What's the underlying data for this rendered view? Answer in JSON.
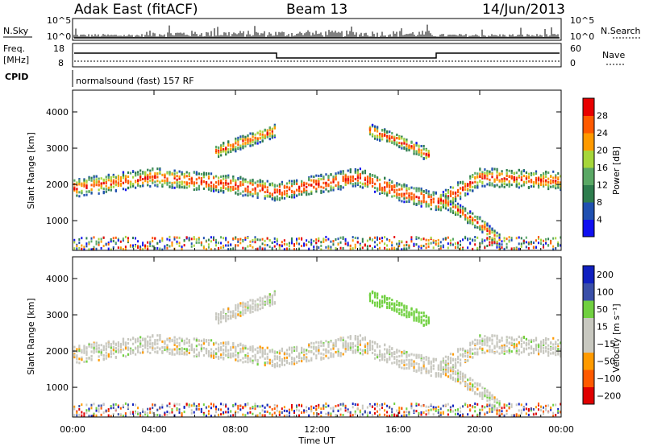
{
  "header": {
    "station": "Adak East (fitACF)",
    "beam": "Beam 13",
    "date": "14/Jun/2013"
  },
  "noise_panel": {
    "left_label": "N.Sky",
    "right_label": "N.Search",
    "left_ticks": [
      "10^5",
      "10^0"
    ],
    "right_ticks": [
      "10^5",
      "10^0"
    ]
  },
  "freq_panel": {
    "left_label_1": "Freq.",
    "left_label_2": "[MHz]",
    "right_label": "Nave",
    "left_ticks": [
      "18",
      "8"
    ],
    "right_ticks": [
      "60",
      "0"
    ],
    "cpid_label": "CPID",
    "cpid_text": "normalsound (fast) 157 RF"
  },
  "colors": {
    "power": [
      "#1010f0",
      "#2050b0",
      "#2e7d4e",
      "#5aa865",
      "#a6d63a",
      "#ff9a00",
      "#ff5a00",
      "#e80000"
    ],
    "velocity": [
      "#e00000",
      "#ff5a00",
      "#ff9a00",
      "#c8c8c0",
      "#c8c8c0",
      "#70d040",
      "#3a4fa8",
      "#1020c0"
    ]
  },
  "chart_data": [
    {
      "type": "heatmap",
      "title": "Power",
      "ylabel": "Slant Range [km]",
      "ylim": [
        180,
        4600
      ],
      "yticks": [
        "1000",
        "2000",
        "3000",
        "4000"
      ],
      "colorbar_label": "Power [dB]",
      "colorbar_ticks": [
        "4",
        "8",
        "12",
        "16",
        "20",
        "24",
        "28"
      ],
      "bands": [
        {
          "t": [
            0,
            4,
            7,
            10,
            12,
            14,
            16,
            18,
            20,
            24
          ],
          "range": [
            1900,
            2200,
            2050,
            1800,
            2000,
            2200,
            1800,
            1500,
            2200,
            2100
          ],
          "note": "main echo band"
        },
        {
          "t": [
            7,
            9,
            10
          ],
          "range": [
            2900,
            3300,
            3500
          ],
          "note": "upper slant"
        },
        {
          "t": [
            14.5,
            16,
            17.5
          ],
          "range": [
            3500,
            3200,
            2800
          ],
          "note": "upper slant"
        },
        {
          "t": [
            18,
            20,
            21
          ],
          "range": [
            1600,
            900,
            400
          ],
          "note": "lower slant"
        }
      ]
    },
    {
      "type": "heatmap",
      "title": "Velocity",
      "ylabel": "Slant Range [km]",
      "ylim": [
        180,
        4600
      ],
      "yticks": [
        "1000",
        "2000",
        "3000",
        "4000"
      ],
      "colorbar_label": "Velocity [m s⁻¹]",
      "colorbar_ticks": [
        "200",
        "100",
        "50",
        "15",
        "−15",
        "−50",
        "−100",
        "−200"
      ]
    }
  ],
  "xaxis": {
    "label": "Time UT",
    "ticks": [
      "00:00",
      "04:00",
      "08:00",
      "12:00",
      "16:00",
      "20:00",
      "00:00"
    ]
  }
}
